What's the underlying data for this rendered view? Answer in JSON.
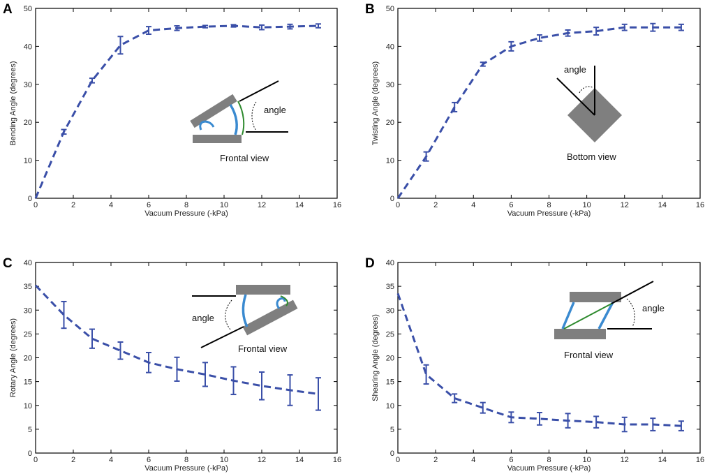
{
  "chart_data": [
    {
      "type": "line",
      "panel": "A",
      "xlabel": "Vacuum Pressure (-kPa)",
      "ylabel": "Bending Angle (degrees)",
      "xlim": [
        0,
        16
      ],
      "ylim": [
        0,
        50
      ],
      "xticks": [
        0,
        2,
        4,
        6,
        8,
        10,
        12,
        14,
        16
      ],
      "yticks": [
        0,
        10,
        20,
        30,
        40,
        50
      ],
      "x": [
        0,
        1.5,
        3,
        4.5,
        6,
        7.5,
        9,
        10.5,
        12,
        13.5,
        15
      ],
      "y": [
        0,
        17.5,
        31,
        40.3,
        44.2,
        44.8,
        45.2,
        45.4,
        45,
        45.2,
        45.4
      ],
      "err": [
        0,
        0.6,
        0.6,
        2.3,
        1.0,
        0.6,
        0.3,
        0.3,
        0.6,
        0.6,
        0.5
      ],
      "inset_label": "angle",
      "inset_caption": "Frontal view"
    },
    {
      "type": "line",
      "panel": "B",
      "xlabel": "Vacuum Pressure (-kPa)",
      "ylabel": "Twisting Angle (degrees)",
      "xlim": [
        0,
        16
      ],
      "ylim": [
        0,
        50
      ],
      "xticks": [
        0,
        2,
        4,
        6,
        8,
        10,
        12,
        14,
        16
      ],
      "yticks": [
        0,
        10,
        20,
        30,
        40,
        50
      ],
      "x": [
        0,
        1.5,
        3,
        4.5,
        6,
        7.5,
        9,
        10.5,
        12,
        13.5,
        15
      ],
      "y": [
        0,
        11,
        24,
        35.3,
        40,
        42.2,
        43.5,
        44,
        45,
        45,
        45
      ],
      "err": [
        0,
        1.2,
        1.2,
        0.5,
        1.2,
        0.8,
        0.8,
        1.0,
        0.8,
        1.0,
        0.8
      ],
      "inset_label": "angle",
      "inset_caption": "Bottom view"
    },
    {
      "type": "line",
      "panel": "C",
      "xlabel": "Vacuum Pressure (-kPa)",
      "ylabel": "Rotary Angle (degrees)",
      "xlim": [
        0,
        16
      ],
      "ylim": [
        0,
        40
      ],
      "xticks": [
        0,
        2,
        4,
        6,
        8,
        10,
        12,
        14,
        16
      ],
      "yticks": [
        0,
        5,
        10,
        15,
        20,
        25,
        30,
        35,
        40
      ],
      "x": [
        0,
        1.5,
        3,
        4.5,
        6,
        7.5,
        9,
        10.5,
        12,
        13.5,
        15
      ],
      "y": [
        35.2,
        29,
        24,
        21.5,
        19,
        17.6,
        16.5,
        15.2,
        14.1,
        13.2,
        12.4
      ],
      "err": [
        0,
        2.8,
        2.0,
        1.8,
        2.1,
        2.5,
        2.5,
        2.9,
        2.9,
        3.2,
        3.4
      ],
      "inset_label": "angle",
      "inset_caption": "Frontal view"
    },
    {
      "type": "line",
      "panel": "D",
      "xlabel": "Vacuum Pressure (-kPa)",
      "ylabel": "Shearing Angle (degrees)",
      "xlim": [
        0,
        16
      ],
      "ylim": [
        0,
        40
      ],
      "xticks": [
        0,
        2,
        4,
        6,
        8,
        10,
        12,
        14,
        16
      ],
      "yticks": [
        0,
        5,
        10,
        15,
        20,
        25,
        30,
        35,
        40
      ],
      "x": [
        0,
        1.5,
        3,
        4.5,
        6,
        7.5,
        9,
        10.5,
        12,
        13.5,
        15
      ],
      "y": [
        33.5,
        16.5,
        11.5,
        9.5,
        7.5,
        7.2,
        6.8,
        6.5,
        6.0,
        6.0,
        5.7
      ],
      "err": [
        0,
        2.0,
        0.9,
        1.1,
        1.1,
        1.3,
        1.5,
        1.2,
        1.5,
        1.3,
        1.0
      ],
      "inset_label": "angle",
      "inset_caption": "Frontal view"
    }
  ],
  "colors": {
    "series": "#3a4fa8",
    "actuator_arc": "#3a8ad0",
    "reference_arc": "#2e8a2e",
    "plate": "#7f7f7f"
  }
}
